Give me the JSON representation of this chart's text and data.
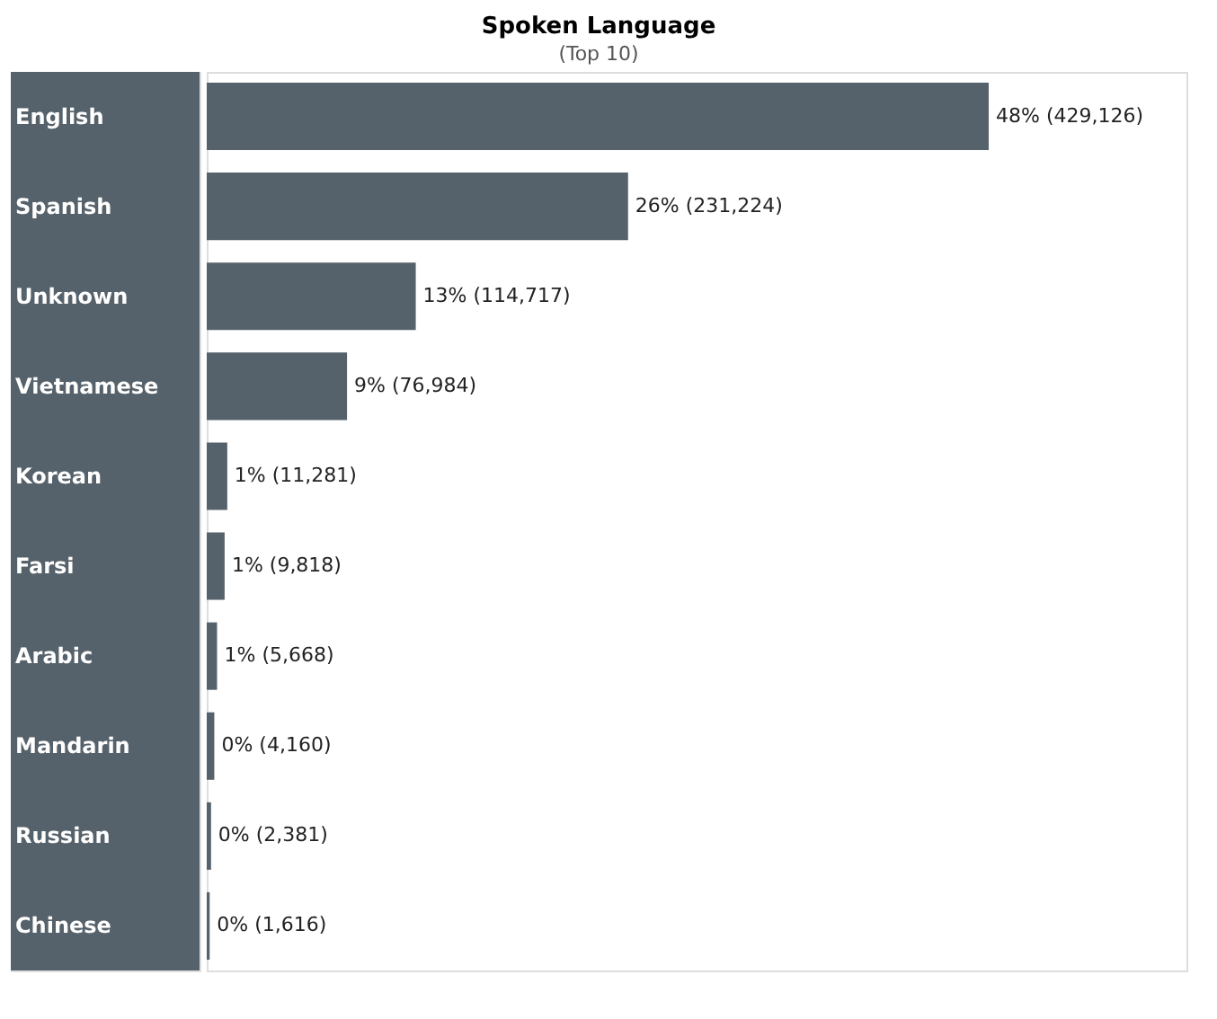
{
  "chart_data": {
    "type": "bar",
    "orientation": "horizontal",
    "title": "Spoken Language",
    "subtitle": "(Top 10)",
    "categories": [
      "English",
      "Spanish",
      "Unknown",
      "Vietnamese",
      "Korean",
      "Farsi",
      "Arabic",
      "Mandarin",
      "Russian",
      "Chinese"
    ],
    "values": [
      429126,
      231224,
      114717,
      76984,
      11281,
      9818,
      5668,
      4160,
      2381,
      1616
    ],
    "value_labels": [
      "48% (429,126)",
      "26% (231,224)",
      "13% (114,717)",
      "9% (76,984)",
      "1% (11,281)",
      "1% (9,818)",
      "1% (5,668)",
      "0% (4,160)",
      "0% (2,381)",
      "0% (1,616)"
    ],
    "color": "#56626b"
  }
}
